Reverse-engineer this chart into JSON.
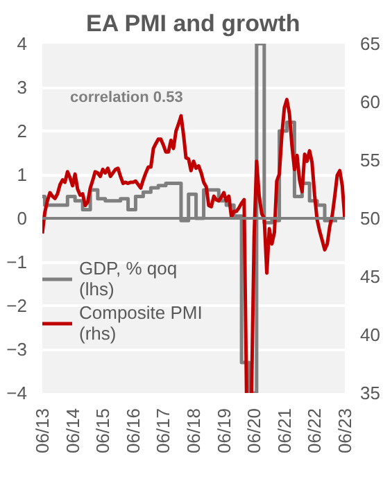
{
  "chart_data": {
    "type": "line",
    "title": "EA PMI and growth",
    "annotations": [
      "correlation 0.53"
    ],
    "xlim": [
      "2013-06",
      "2023-06"
    ],
    "xticks": [
      {
        "value": "2013-06",
        "label": "06/13"
      },
      {
        "value": "2014-06",
        "label": "06/14"
      },
      {
        "value": "2015-06",
        "label": "06/15"
      },
      {
        "value": "2016-06",
        "label": "06/16"
      },
      {
        "value": "2017-06",
        "label": "06/17"
      },
      {
        "value": "2018-06",
        "label": "06/18"
      },
      {
        "value": "2019-06",
        "label": "06/19"
      },
      {
        "value": "2020-06",
        "label": "06/20"
      },
      {
        "value": "2021-06",
        "label": "06/21"
      },
      {
        "value": "2022-06",
        "label": "06/22"
      },
      {
        "value": "2023-06",
        "label": "06/23"
      }
    ],
    "ylim": [
      -4,
      4
    ],
    "yticks": [
      -4,
      -3,
      -2,
      -1,
      0,
      1,
      2,
      3,
      4
    ],
    "y2lim": [
      35,
      65
    ],
    "y2ticks": [
      35,
      40,
      45,
      50,
      55,
      60,
      65
    ],
    "grid": "y",
    "legend": "left",
    "line_style": "solid",
    "ref_lines": [
      {
        "axis": "y",
        "value": 0,
        "color": "#808080"
      }
    ],
    "series": [
      {
        "name": "GDP, % qoq (lhs)",
        "type": "step",
        "color": "#7f7f7f",
        "x": [
          "2013-06",
          "2013-07",
          "2013-10",
          "2014-01",
          "2014-04",
          "2014-07",
          "2014-10",
          "2015-01",
          "2015-04",
          "2015-07",
          "2015-10",
          "2016-01",
          "2016-04",
          "2016-07",
          "2016-10",
          "2017-01",
          "2017-04",
          "2017-07",
          "2017-10",
          "2018-01",
          "2018-04",
          "2018-07",
          "2018-10",
          "2019-01",
          "2019-04",
          "2019-07",
          "2019-10",
          "2020-01",
          "2020-04",
          "2020-07",
          "2020-10",
          "2021-01",
          "2021-04",
          "2021-07",
          "2021-10",
          "2022-01",
          "2022-04",
          "2022-07",
          "2022-10",
          "2023-01",
          "2023-03"
        ],
        "values": [
          0.5,
          0.3,
          0.3,
          0.3,
          0.5,
          0.4,
          0.2,
          0.65,
          0.45,
          0.4,
          0.4,
          0.45,
          0.2,
          0.5,
          0.6,
          0.7,
          0.75,
          0.8,
          0.8,
          -0.05,
          0.55,
          0.0,
          0.65,
          0.65,
          0.4,
          0.3,
          0.05,
          -3.3,
          -4,
          4,
          -0.1,
          -0.05,
          2.0,
          2.2,
          0.5,
          0.8,
          0.4,
          0.3,
          -0.05,
          -0.05,
          -0.05
        ]
      },
      {
        "name": "Composite PMI (rhs)",
        "axis": "y2",
        "color": "#c00000",
        "x": [
          "2013-06",
          "2013-07",
          "2013-08",
          "2013-09",
          "2013-10",
          "2013-11",
          "2013-12",
          "2014-01",
          "2014-02",
          "2014-03",
          "2014-04",
          "2014-05",
          "2014-06",
          "2014-07",
          "2014-08",
          "2014-09",
          "2014-10",
          "2014-11",
          "2014-12",
          "2015-01",
          "2015-02",
          "2015-03",
          "2015-04",
          "2015-05",
          "2015-06",
          "2015-07",
          "2015-08",
          "2015-09",
          "2015-10",
          "2015-11",
          "2015-12",
          "2016-01",
          "2016-02",
          "2016-03",
          "2016-04",
          "2016-05",
          "2016-06",
          "2016-07",
          "2016-08",
          "2016-09",
          "2016-10",
          "2016-11",
          "2016-12",
          "2017-01",
          "2017-02",
          "2017-03",
          "2017-04",
          "2017-05",
          "2017-06",
          "2017-07",
          "2017-08",
          "2017-09",
          "2017-10",
          "2017-11",
          "2017-12",
          "2018-01",
          "2018-02",
          "2018-03",
          "2018-04",
          "2018-05",
          "2018-06",
          "2018-07",
          "2018-08",
          "2018-09",
          "2018-10",
          "2018-11",
          "2018-12",
          "2019-01",
          "2019-02",
          "2019-03",
          "2019-04",
          "2019-05",
          "2019-06",
          "2019-07",
          "2019-08",
          "2019-09",
          "2019-10",
          "2019-11",
          "2019-12",
          "2020-01",
          "2020-02",
          "2020-03",
          "2020-04",
          "2020-05",
          "2020-06",
          "2020-07",
          "2020-08",
          "2020-09",
          "2020-10",
          "2020-11",
          "2020-12",
          "2021-01",
          "2021-02",
          "2021-03",
          "2021-04",
          "2021-05",
          "2021-06",
          "2021-07",
          "2021-08",
          "2021-09",
          "2021-10",
          "2021-11",
          "2021-12",
          "2022-01",
          "2022-02",
          "2022-03",
          "2022-04",
          "2022-05",
          "2022-06",
          "2022-07",
          "2022-08",
          "2022-09",
          "2022-10",
          "2022-11",
          "2022-12",
          "2023-01",
          "2023-02",
          "2023-03",
          "2023-04",
          "2023-05",
          "2023-06"
        ],
        "values": [
          48.7,
          50.5,
          51.5,
          52.2,
          51.9,
          51.7,
          52.1,
          52.9,
          53.3,
          53.1,
          54.0,
          53.5,
          52.8,
          53.8,
          52.5,
          52.0,
          52.1,
          51.1,
          51.4,
          52.6,
          53.3,
          54.0,
          53.9,
          53.6,
          54.2,
          53.9,
          54.3,
          53.6,
          53.9,
          54.2,
          54.3,
          53.6,
          53.0,
          53.1,
          53.0,
          53.1,
          53.1,
          53.2,
          52.9,
          52.6,
          53.3,
          53.9,
          54.4,
          54.4,
          56.0,
          56.4,
          56.8,
          56.8,
          56.3,
          55.7,
          55.7,
          56.7,
          56.0,
          57.5,
          58.1,
          58.8,
          57.1,
          55.2,
          55.1,
          54.1,
          54.9,
          54.3,
          54.5,
          53.9,
          53.1,
          52.7,
          51.1,
          51.0,
          51.9,
          51.6,
          51.5,
          51.8,
          52.2,
          51.5,
          51.9,
          50.1,
          50.6,
          50.6,
          50.9,
          51.3,
          51.6,
          35,
          null,
          35,
          48.5,
          54.9,
          51.9,
          50.4,
          50.0,
          45.3,
          49.1,
          47.8,
          48.8,
          53.2,
          53.8,
          57.1,
          59.5,
          60.2,
          59.0,
          56.2,
          54.2,
          55.4,
          53.3,
          52.3,
          55.5,
          54.9,
          55.8,
          54.8,
          52.0,
          49.9,
          48.9,
          48.1,
          47.3,
          47.8,
          49.3,
          50.3,
          52.0,
          53.7,
          54.1,
          52.8,
          49.9
        ]
      }
    ]
  }
}
